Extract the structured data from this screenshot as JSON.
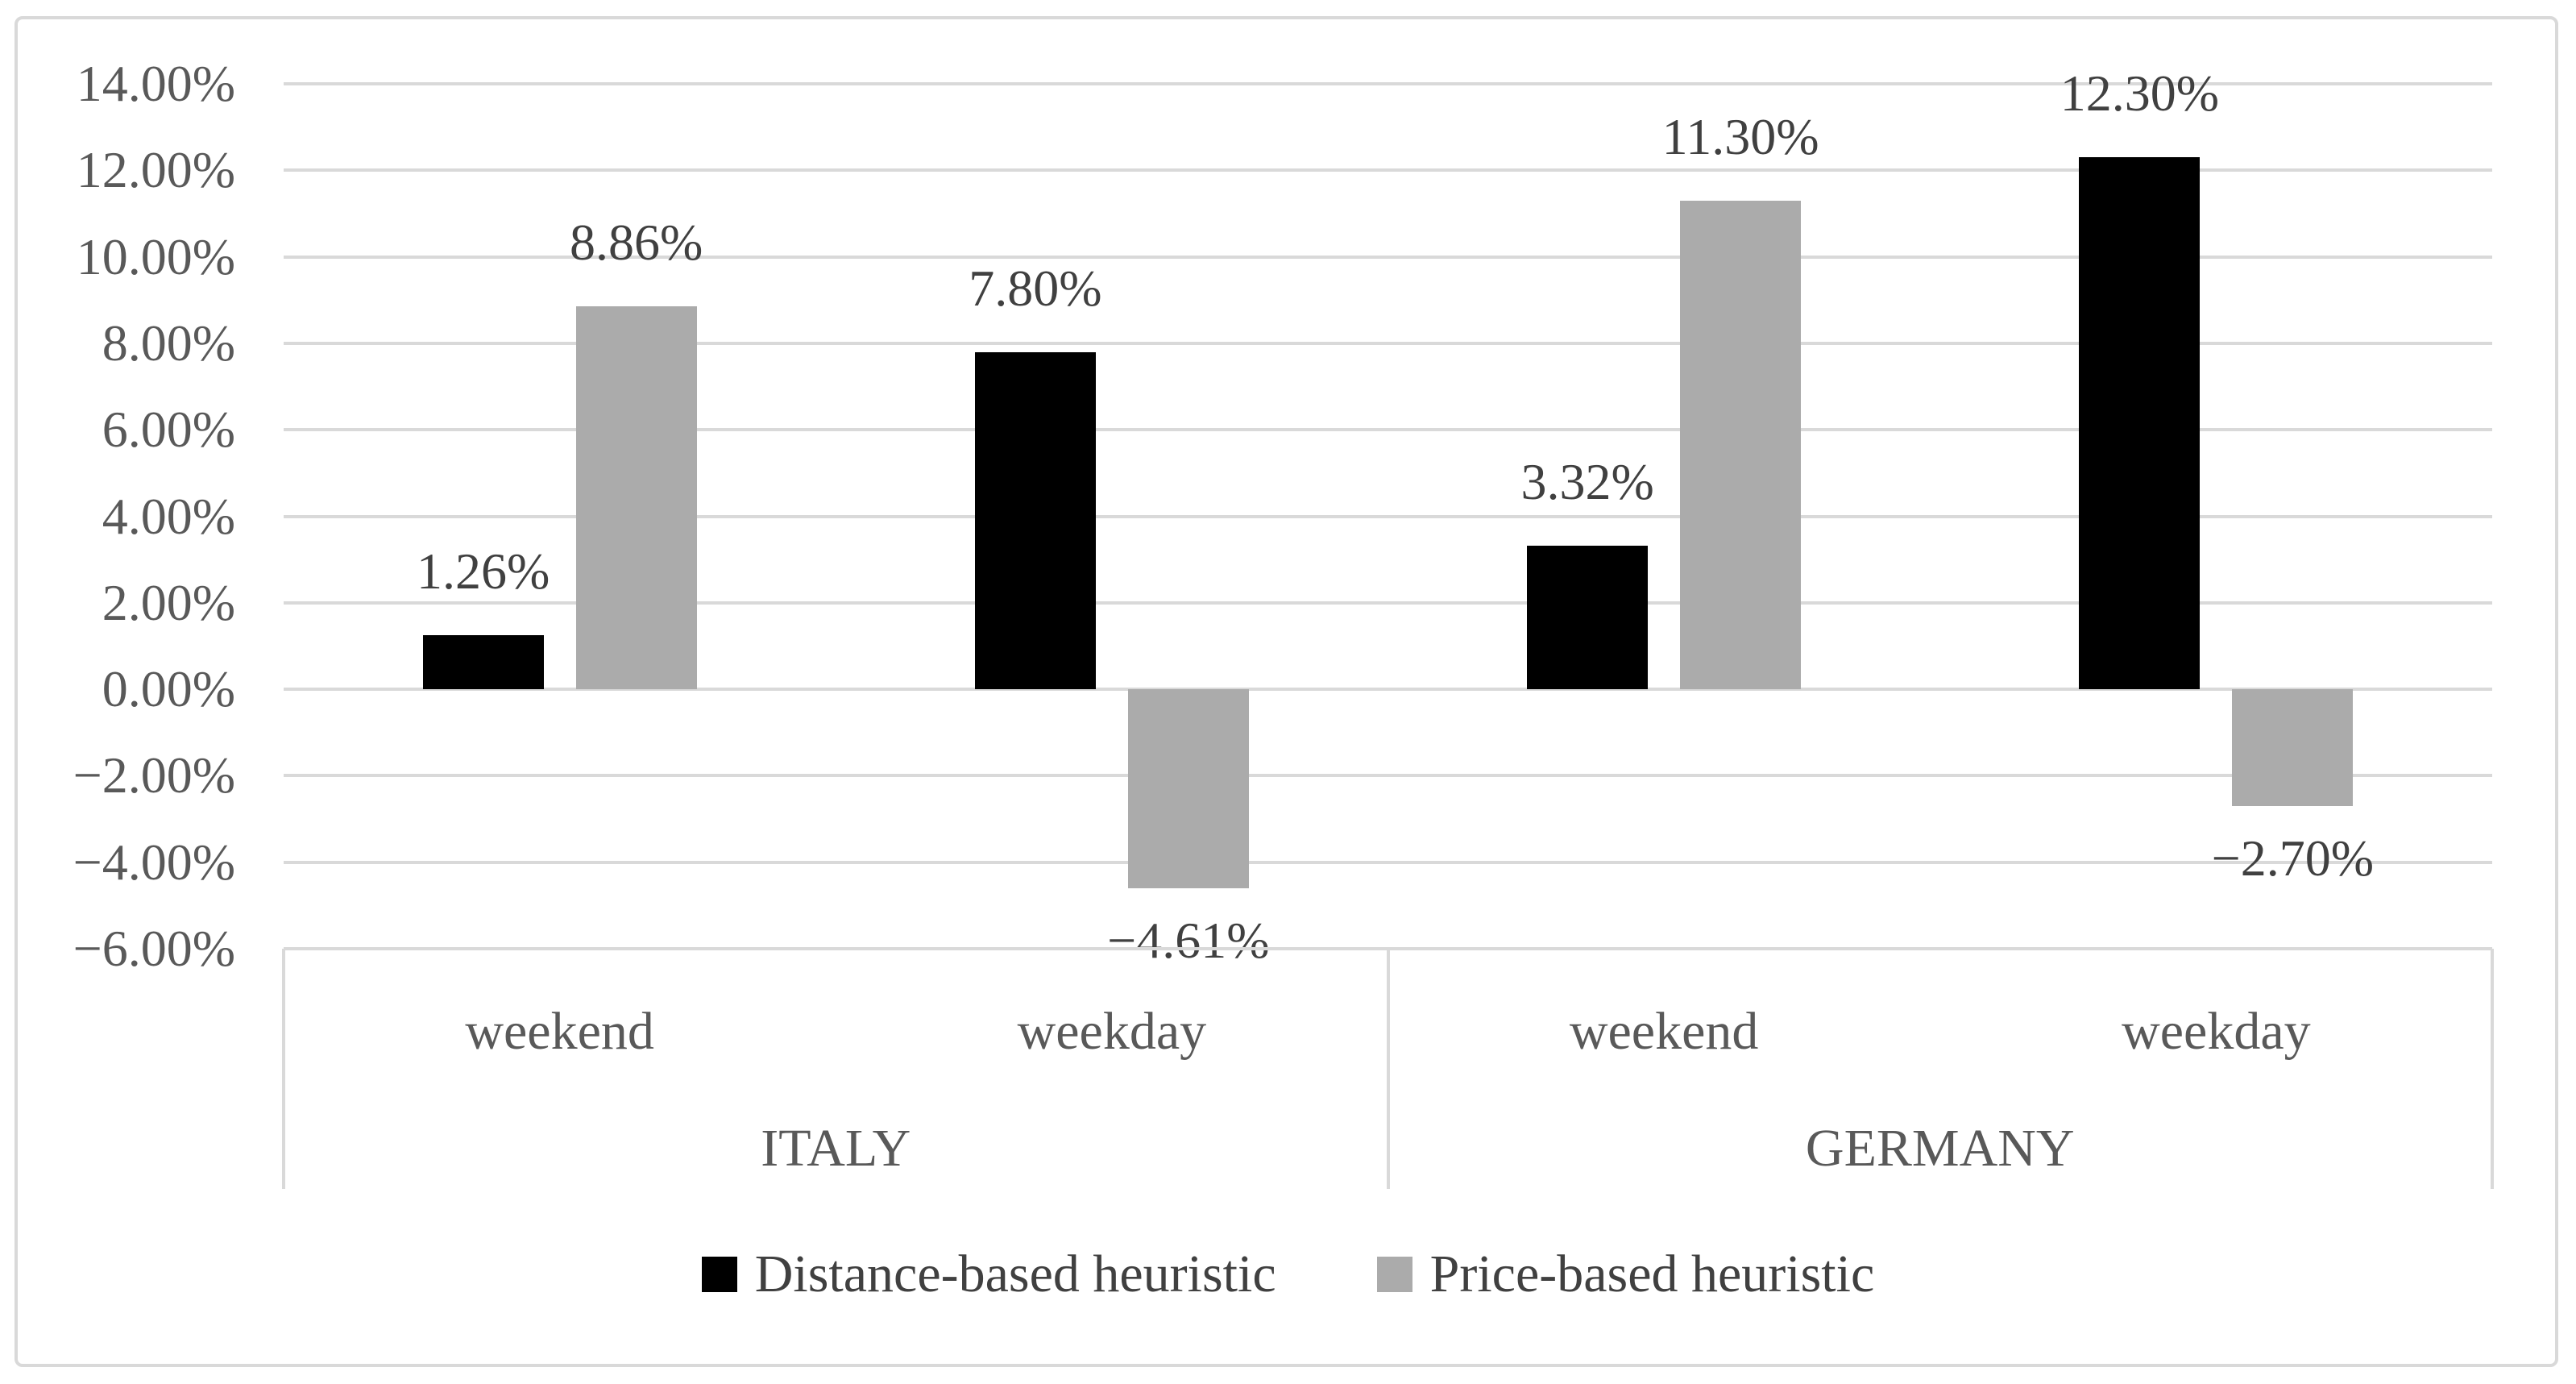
{
  "figure": {
    "background": "#FFFFFF",
    "border_color": "#D9D9D9"
  },
  "legend": {
    "items": [
      {
        "label": "Distance-based heuristic",
        "color": "#000000"
      },
      {
        "label": "Price-based heuristic",
        "color": "#ABABAB"
      }
    ]
  },
  "chart_data": {
    "type": "bar",
    "title": "",
    "groups": [
      {
        "label": "ITALY",
        "categories": [
          "weekend",
          "weekday"
        ]
      },
      {
        "label": "GERMANY",
        "categories": [
          "weekend",
          "weekday"
        ]
      }
    ],
    "categories": [
      "weekend",
      "weekday",
      "weekend",
      "weekday"
    ],
    "series": [
      {
        "name": "Distance-based heuristic",
        "color": "#000000",
        "values": [
          1.26,
          7.8,
          3.32,
          12.3
        ],
        "data_labels": [
          "1.26%",
          "7.80%",
          "3.32%",
          "12.30%"
        ]
      },
      {
        "name": "Price-based heuristic",
        "color": "#ABABAB",
        "values": [
          8.86,
          -4.61,
          11.3,
          -2.7
        ],
        "data_labels": [
          "8.86%",
          "−4.61%",
          "11.30%",
          "−2.70%"
        ]
      }
    ],
    "y_axis": {
      "min": -6,
      "max": 14,
      "step": 2,
      "format": "percent",
      "tick_labels": [
        "14.00%",
        "12.00%",
        "10.00%",
        "8.00%",
        "6.00%",
        "4.00%",
        "2.00%",
        "0.00%",
        "−2.00%",
        "−4.00%",
        "−6.00%"
      ]
    },
    "grid": true,
    "legend_position": "bottom",
    "colors": {
      "grid": "#D9D9D9",
      "axis_line": "#D9D9D9",
      "tick_text": "#595959",
      "data_label_text": "#404040",
      "category_text": "#595959",
      "legend_text": "#404040"
    }
  }
}
